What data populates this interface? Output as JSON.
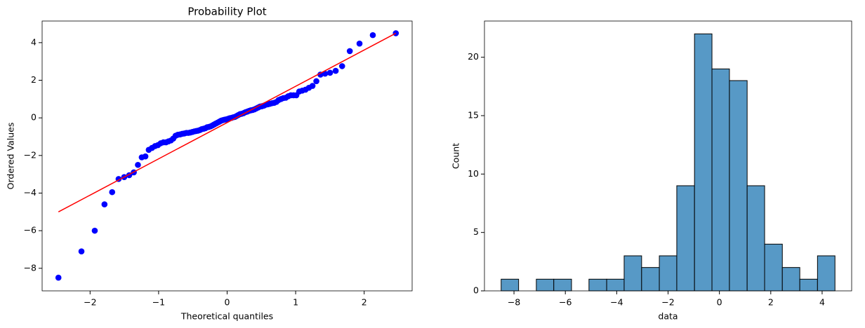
{
  "chart_data": [
    {
      "type": "scatter",
      "title": "Probability Plot",
      "x_label": "Theoretical quantiles",
      "y_label": "Ordered Values",
      "points": {
        "color": "#0000ff",
        "x": [
          -2.462,
          -2.126,
          -1.932,
          -1.79,
          -1.678,
          -1.584,
          -1.502,
          -1.429,
          -1.362,
          -1.302,
          -1.246,
          -1.193,
          -1.144,
          -1.097,
          -1.052,
          -1.01,
          -0.969,
          -0.93,
          -0.892,
          -0.856,
          -0.82,
          -0.786,
          -0.752,
          -0.72,
          -0.687,
          -0.656,
          -0.625,
          -0.595,
          -0.566,
          -0.537,
          -0.508,
          -0.48,
          -0.452,
          -0.425,
          -0.398,
          -0.371,
          -0.344,
          -0.318,
          -0.292,
          -0.266,
          -0.24,
          -0.214,
          -0.189,
          -0.163,
          -0.138,
          -0.113,
          -0.088,
          -0.063,
          -0.038,
          -0.013,
          0.013,
          0.038,
          0.063,
          0.088,
          0.113,
          0.138,
          0.163,
          0.189,
          0.214,
          0.24,
          0.266,
          0.292,
          0.318,
          0.344,
          0.371,
          0.398,
          0.425,
          0.452,
          0.48,
          0.508,
          0.537,
          0.566,
          0.595,
          0.625,
          0.656,
          0.687,
          0.72,
          0.752,
          0.786,
          0.82,
          0.856,
          0.892,
          0.93,
          0.969,
          1.01,
          1.052,
          1.097,
          1.144,
          1.193,
          1.246,
          1.302,
          1.362,
          1.429,
          1.502,
          1.584,
          1.678,
          1.79,
          1.932,
          2.126,
          2.462
        ],
        "y": [
          -8.5,
          -7.1,
          -6.0,
          -4.6,
          -3.95,
          -3.25,
          -3.15,
          -3.05,
          -2.9,
          -2.5,
          -2.1,
          -2.05,
          -1.7,
          -1.6,
          -1.5,
          -1.45,
          -1.35,
          -1.3,
          -1.3,
          -1.25,
          -1.2,
          -1.1,
          -0.95,
          -0.9,
          -0.88,
          -0.85,
          -0.83,
          -0.8,
          -0.8,
          -0.78,
          -0.75,
          -0.72,
          -0.7,
          -0.68,
          -0.65,
          -0.6,
          -0.58,
          -0.55,
          -0.5,
          -0.48,
          -0.45,
          -0.4,
          -0.35,
          -0.3,
          -0.25,
          -0.2,
          -0.15,
          -0.12,
          -0.1,
          -0.08,
          -0.05,
          -0.02,
          0.0,
          0.03,
          0.05,
          0.1,
          0.15,
          0.2,
          0.22,
          0.25,
          0.3,
          0.33,
          0.37,
          0.4,
          0.42,
          0.45,
          0.5,
          0.55,
          0.6,
          0.62,
          0.65,
          0.7,
          0.72,
          0.75,
          0.78,
          0.8,
          0.85,
          0.95,
          1.0,
          1.05,
          1.07,
          1.15,
          1.2,
          1.2,
          1.2,
          1.4,
          1.45,
          1.5,
          1.6,
          1.7,
          1.95,
          2.3,
          2.35,
          2.4,
          2.5,
          2.75,
          3.55,
          3.95,
          4.4,
          4.5
        ]
      },
      "line": {
        "color": "#ff0000",
        "x": [
          -2.462,
          2.462
        ],
        "y": [
          -5.0,
          4.5
        ]
      },
      "xlim": [
        -2.7,
        2.7
      ],
      "ylim": [
        -9.2,
        5.15
      ],
      "xticks": [
        {
          "value": -2,
          "label": "−2"
        },
        {
          "value": -1,
          "label": "−1"
        },
        0,
        1,
        2
      ],
      "yticks": [
        {
          "value": -8,
          "label": "−8"
        },
        {
          "value": -6,
          "label": "−6"
        },
        {
          "value": -4,
          "label": "−4"
        },
        {
          "value": -2,
          "label": "−2"
        },
        0,
        2,
        4
      ]
    },
    {
      "type": "histogram",
      "x_label": "data",
      "y_label": "Count",
      "color": "#5799c6",
      "bins": [
        -8.5,
        -7.82,
        -7.13,
        -6.45,
        -5.76,
        -5.08,
        -4.39,
        -3.71,
        -3.03,
        -2.34,
        -1.66,
        -0.97,
        -0.29,
        0.39,
        1.08,
        1.76,
        2.45,
        3.13,
        3.82,
        4.5
      ],
      "counts": [
        1,
        0,
        1,
        1,
        0,
        1,
        1,
        3,
        2,
        3,
        9,
        22,
        19,
        18,
        9,
        4,
        2,
        1,
        3
      ],
      "xlim": [
        -9.15,
        5.15
      ],
      "ylim": [
        0,
        23.1
      ],
      "xticks": [
        {
          "value": -8,
          "label": "−8"
        },
        {
          "value": -6,
          "label": "−6"
        },
        {
          "value": -4,
          "label": "−4"
        },
        {
          "value": -2,
          "label": "−2"
        },
        0,
        2,
        4
      ],
      "yticks": [
        0,
        5,
        10,
        15,
        20
      ]
    }
  ]
}
